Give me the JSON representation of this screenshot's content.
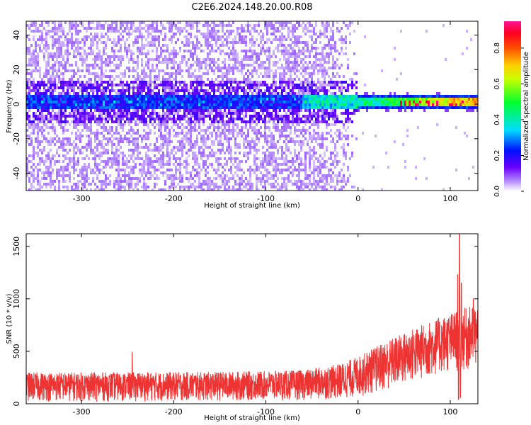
{
  "title": "C2E6.2024.148.20.00.R08",
  "chart_data": [
    {
      "type": "heatmap",
      "xlabel": "Height of straight line (km)",
      "ylabel": "Frequency (Hz)",
      "xlim": [
        -360,
        130
      ],
      "ylim": [
        -50,
        48
      ],
      "x_ticks": [
        -300,
        -200,
        -100,
        0,
        100
      ],
      "x_tick_labels": [
        "-300",
        "-200",
        "-100",
        "0",
        "100"
      ],
      "y_ticks": [
        -40,
        -20,
        0,
        20,
        40
      ],
      "y_tick_labels": [
        "-40",
        "-20",
        "0",
        "20",
        "40"
      ],
      "colorbar": {
        "label": "Normalized spectral amplitude",
        "range": [
          0,
          0.95
        ],
        "ticks": [
          0.0,
          0.2,
          0.4,
          0.6,
          0.8
        ],
        "tick_labels": [
          "0.0",
          "0.2",
          "0.4",
          "0.6",
          "0.8"
        ],
        "colormap": [
          "#ffffff",
          "#8b00ff",
          "#0000ff",
          "#00ffff",
          "#00ff00",
          "#ffff00",
          "#ff8000",
          "#ff0000",
          "#ff1493"
        ]
      },
      "band": {
        "center_hz": 1,
        "core_halfwidth_hz": 4,
        "noise_halfwidth_hz": 12,
        "low_snr_region_km": [
          -360,
          0
        ],
        "high_snr_region_km": [
          0,
          130
        ]
      }
    },
    {
      "type": "line",
      "xlabel": "Height of straight line (km)",
      "ylabel": "SNR (10 * v/v)",
      "xlim": [
        -360,
        130
      ],
      "ylim": [
        0,
        1620
      ],
      "x_ticks": [
        -300,
        -200,
        -100,
        0,
        100
      ],
      "x_tick_labels": [
        "-300",
        "-200",
        "-100",
        "0",
        "100"
      ],
      "y_ticks": [
        0,
        500,
        1000,
        1500
      ],
      "y_tick_labels": [
        "0",
        "500",
        "1000",
        "1500"
      ],
      "series": [
        {
          "color": "#ee3333",
          "envelope": [
            {
              "x": -360,
              "low": 20,
              "high": 300
            },
            {
              "x": -250,
              "low": 20,
              "high": 300
            },
            {
              "x": -150,
              "low": 25,
              "high": 305
            },
            {
              "x": -60,
              "low": 30,
              "high": 320
            },
            {
              "x": -20,
              "low": 40,
              "high": 380
            },
            {
              "x": 0,
              "low": 60,
              "high": 450
            },
            {
              "x": 30,
              "low": 120,
              "high": 600
            },
            {
              "x": 60,
              "low": 200,
              "high": 720
            },
            {
              "x": 90,
              "low": 280,
              "high": 830
            },
            {
              "x": 110,
              "low": 300,
              "high": 900
            },
            {
              "x": 130,
              "low": 320,
              "high": 950
            }
          ],
          "spikes": [
            {
              "x": -245,
              "y": 490
            },
            {
              "x": 110,
              "y": 1620
            },
            {
              "x": 108,
              "y": 1230
            },
            {
              "x": 112,
              "y": 1150
            },
            {
              "x": 125,
              "y": 1000
            }
          ],
          "dips": [
            {
              "x": 109,
              "y": 40
            },
            {
              "x": 111,
              "y": 60
            }
          ]
        }
      ]
    }
  ]
}
